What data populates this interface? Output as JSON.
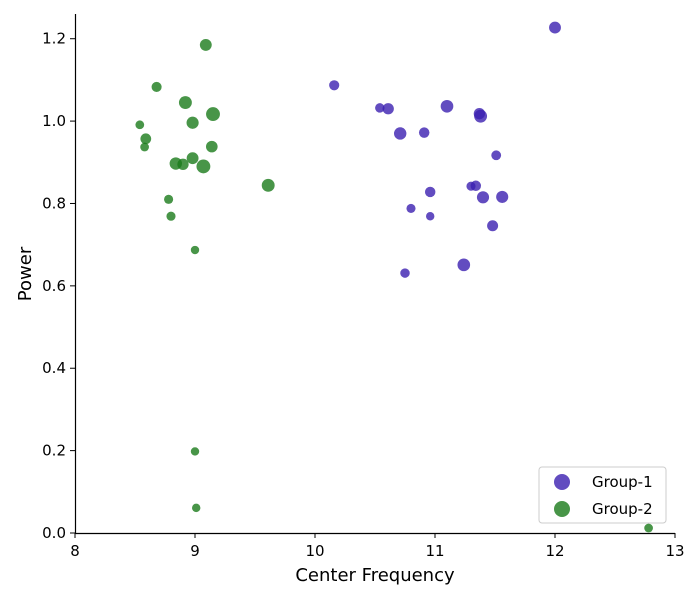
{
  "chart_data": {
    "type": "scatter",
    "title": "",
    "xlabel": "Center Frequency",
    "ylabel": "Power",
    "xlim": [
      8,
      13
    ],
    "ylim": [
      0,
      1.26
    ],
    "x_ticks": [
      "8",
      "9",
      "10",
      "11",
      "12",
      "13"
    ],
    "y_ticks": [
      "0.0",
      "0.2",
      "0.4",
      "0.6",
      "0.8",
      "1.0",
      "1.2"
    ],
    "grid": false,
    "legend_position": "bottom-right",
    "series": [
      {
        "name": "Group-1",
        "color": "#3b1fb0",
        "points": [
          {
            "x": 10.16,
            "y": 1.087,
            "s": 1.6
          },
          {
            "x": 10.54,
            "y": 1.032,
            "s": 1.4
          },
          {
            "x": 10.61,
            "y": 1.03,
            "s": 2.0
          },
          {
            "x": 10.71,
            "y": 0.97,
            "s": 2.4
          },
          {
            "x": 10.91,
            "y": 0.972,
            "s": 1.7
          },
          {
            "x": 11.1,
            "y": 1.036,
            "s": 2.5
          },
          {
            "x": 11.37,
            "y": 1.018,
            "s": 2.0
          },
          {
            "x": 11.38,
            "y": 1.012,
            "s": 2.6
          },
          {
            "x": 11.51,
            "y": 0.917,
            "s": 1.5
          },
          {
            "x": 10.96,
            "y": 0.828,
            "s": 1.7
          },
          {
            "x": 11.3,
            "y": 0.842,
            "s": 1.3
          },
          {
            "x": 11.34,
            "y": 0.843,
            "s": 1.7
          },
          {
            "x": 11.4,
            "y": 0.815,
            "s": 2.3
          },
          {
            "x": 11.56,
            "y": 0.816,
            "s": 2.3
          },
          {
            "x": 10.8,
            "y": 0.788,
            "s": 1.3
          },
          {
            "x": 10.96,
            "y": 0.769,
            "s": 1.1
          },
          {
            "x": 11.48,
            "y": 0.746,
            "s": 1.9
          },
          {
            "x": 10.75,
            "y": 0.631,
            "s": 1.4
          },
          {
            "x": 11.24,
            "y": 0.651,
            "s": 2.5
          },
          {
            "x": 12.0,
            "y": 1.227,
            "s": 2.2
          }
        ]
      },
      {
        "name": "Group-2",
        "color": "#1a7a1a",
        "points": [
          {
            "x": 9.09,
            "y": 1.185,
            "s": 2.2
          },
          {
            "x": 8.68,
            "y": 1.083,
            "s": 1.6
          },
          {
            "x": 8.92,
            "y": 1.045,
            "s": 2.6
          },
          {
            "x": 9.15,
            "y": 1.017,
            "s": 3.0
          },
          {
            "x": 8.98,
            "y": 0.996,
            "s": 2.3
          },
          {
            "x": 8.54,
            "y": 0.991,
            "s": 1.2
          },
          {
            "x": 8.59,
            "y": 0.957,
            "s": 1.8
          },
          {
            "x": 8.58,
            "y": 0.937,
            "s": 1.2
          },
          {
            "x": 9.14,
            "y": 0.938,
            "s": 2.1
          },
          {
            "x": 8.98,
            "y": 0.91,
            "s": 2.2
          },
          {
            "x": 8.84,
            "y": 0.897,
            "s": 2.4
          },
          {
            "x": 8.9,
            "y": 0.895,
            "s": 2.0
          },
          {
            "x": 9.07,
            "y": 0.89,
            "s": 3.0
          },
          {
            "x": 9.61,
            "y": 0.844,
            "s": 2.6
          },
          {
            "x": 8.78,
            "y": 0.81,
            "s": 1.3
          },
          {
            "x": 8.8,
            "y": 0.769,
            "s": 1.3
          },
          {
            "x": 9.0,
            "y": 0.687,
            "s": 1.1
          },
          {
            "x": 9.0,
            "y": 0.198,
            "s": 1.1
          },
          {
            "x": 9.01,
            "y": 0.061,
            "s": 1.1
          },
          {
            "x": 12.78,
            "y": 0.012,
            "s": 1.2
          }
        ]
      }
    ]
  }
}
